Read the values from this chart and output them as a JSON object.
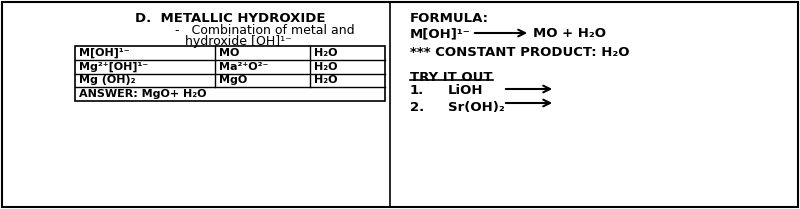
{
  "bg_color": "#ffffff",
  "border_color": "#000000",
  "left_panel": {
    "title": "D.  METALLIC HYDROXIDE",
    "subtitle_line1": "Combination of metal and",
    "subtitle_line2": "hydroxide [OH]¹⁻",
    "table": {
      "col1": [
        "M[OH]¹⁻",
        "Mg²⁺[OH]¹⁻",
        "Mg (OH)₂",
        "ANSWER: MgO+ H₂O"
      ],
      "col2": [
        "MO",
        "Ma²⁺O²⁻",
        "MgO",
        ""
      ],
      "col3": [
        "H₂O",
        "H₂O",
        "H₂O",
        ""
      ]
    }
  },
  "right_panel": {
    "formula_label": "FORMULA:",
    "constant": "*** CONSTANT PRODUCT: H₂O",
    "try_label": "TRY IT OUT",
    "item1_num": "1.",
    "item1_text": "LiOH",
    "item2_num": "2.",
    "item2_text": "Sr(OH)₂"
  }
}
